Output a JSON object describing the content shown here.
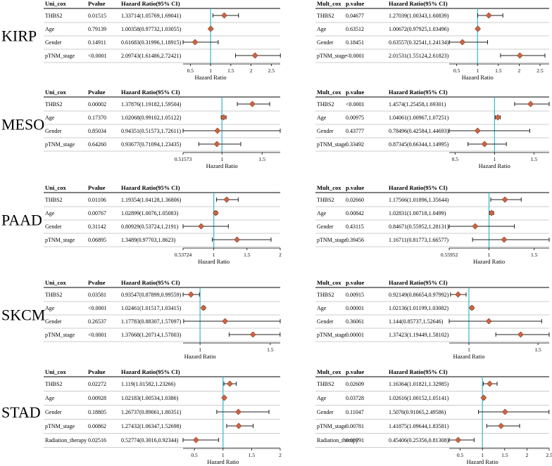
{
  "figure": {
    "panels": [
      {
        "cancer": "KIRP",
        "uni": {
          "headers": [
            "Uni_cox",
            "Pvalue",
            "Hazard Ratio(95% CI)"
          ],
          "xlabel": "Hazard Ratio",
          "rows": [
            {
              "var": "THBS2",
              "p": "0.01515",
              "hr_text": "1.33714(1.05769,1.69041)"
            },
            {
              "var": "Age",
              "p": "0.79139",
              "hr_text": "1.00358(0.97732,1.03055)"
            },
            {
              "var": "Gender",
              "p": "0.14911",
              "hr_text": "0.61683(0.31996,1.18915)"
            },
            {
              "var": "pTNM_stage",
              "p": "<0.0001",
              "hr_text": "2.09743(1.61486,2.72421)"
            }
          ]
        },
        "mult": {
          "headers": [
            "Mult_cox",
            "p.value",
            "Hazard Ratio(95% CI)"
          ],
          "xlabel": "Hazard Ratio",
          "rows": [
            {
              "var": "THBS2",
              "p": "0.04677",
              "hr_text": "1.27039(1.00343,1.60839)"
            },
            {
              "var": "Age",
              "p": "0.63512",
              "hr_text": "1.00672(0.97925,1.03496)"
            },
            {
              "var": "Gender",
              "p": "0.18451",
              "hr_text": "0.63557(0.32541,1.24134)"
            },
            {
              "var": "pTNM_stage",
              "p": "<0.0001",
              "hr_text": "2.01531(1.55124,2.61823)"
            }
          ]
        }
      },
      {
        "cancer": "MESO",
        "uni": {
          "headers": [
            "Uni_cox",
            "Pvalue",
            "Hazard Ratio(95% CI)"
          ],
          "xlabel": "Hazard Ratio",
          "rows": [
            {
              "var": "THBS2",
              "p": "0.00002",
              "hr_text": "1.37876(1.19182,1.59504)"
            },
            {
              "var": "Age",
              "p": "0.17370",
              "hr_text": "1.02068(0.99102,1.05122)"
            },
            {
              "var": "Gender",
              "p": "0.85034",
              "hr_text": "0.94351(0.51573,1.72611)"
            },
            {
              "var": "pTNM_stage",
              "p": "0.64260",
              "hr_text": "0.93677(0.71094,1.23435)"
            }
          ]
        },
        "mult": {
          "headers": [
            "Mult_cox",
            "p.value",
            "Hazard Ratio(95% CI)"
          ],
          "xlabel": "Hazard Ratio",
          "rows": [
            {
              "var": "THBS2",
              "p": "<0.0001",
              "hr_text": "1.4574(1.25458,1.69301)"
            },
            {
              "var": "Age",
              "p": "0.00975",
              "hr_text": "1.04061(1.00967,1.07251)"
            },
            {
              "var": "Gender",
              "p": "0.43777",
              "hr_text": "0.78496(0.42584,1.44693)"
            },
            {
              "var": "pTNM_stage",
              "p": "0.33492",
              "hr_text": "0.87345(0.66344,1.14995)"
            }
          ]
        }
      },
      {
        "cancer": "PAAD",
        "uni": {
          "headers": [
            "Uni_cox",
            "Pvalue",
            "Hazard Ratio(95% CI)"
          ],
          "xlabel": "Hazard Ratio",
          "rows": [
            {
              "var": "THBS2",
              "p": "0.01106",
              "hr_text": "1.19354(1.04128,1.36806)"
            },
            {
              "var": "Age",
              "p": "0.00767",
              "hr_text": "1.02899(1.0076,1.05083)"
            },
            {
              "var": "Gender",
              "p": "0.31142",
              "hr_text": "0.80929(0.53724,1.2191)"
            },
            {
              "var": "pTNM_stage",
              "p": "0.06895",
              "hr_text": "1.3489(0.97703,1.8623)"
            }
          ]
        },
        "mult": {
          "headers": [
            "Mult_cox",
            "p.value",
            "Hazard Ratio(95% CI)"
          ],
          "xlabel": "Hazard Ratio",
          "rows": [
            {
              "var": "THBS2",
              "p": "0.02660",
              "hr_text": "1.17566(1.01896,1.35644)"
            },
            {
              "var": "Age",
              "p": "0.00842",
              "hr_text": "1.02831(1.00718,1.0499)"
            },
            {
              "var": "Gender",
              "p": "0.43115",
              "hr_text": "0.84671(0.55952,1.28131)"
            },
            {
              "var": "pTNM_stage",
              "p": "0.39456",
              "hr_text": "1.16711(0.81773,1.66577)"
            }
          ]
        }
      },
      {
        "cancer": "SKCM",
        "uni": {
          "headers": [
            "Uni_cox",
            "Pvalue",
            "Hazard Ratio(95% CI)"
          ],
          "xlabel": "Hazard Ratio",
          "rows": [
            {
              "var": "THBS2",
              "p": "0.03581",
              "hr_text": "0.93547(0.87899,0.99559)"
            },
            {
              "var": "Age",
              "p": "<0.0001",
              "hr_text": "1.02461(1.01517,1.03415)"
            },
            {
              "var": "Gender",
              "p": "0.26537",
              "hr_text": "1.17783(0.88307,1.57097)"
            },
            {
              "var": "pTNM_stage",
              "p": "<0.0001",
              "hr_text": "1.37668(1.20714,1.57003)"
            }
          ]
        },
        "mult": {
          "headers": [
            "Mult_cox",
            "p.value",
            "Hazard Ratio(95% CI)"
          ],
          "xlabel": "Hazard Ratio",
          "rows": [
            {
              "var": "THBS2",
              "p": "0.00915",
              "hr_text": "0.92149(0.86654,0.97992)"
            },
            {
              "var": "Age",
              "p": "0.00001",
              "hr_text": "1.02136(1.01199,1.03082)"
            },
            {
              "var": "Gender",
              "p": "0.36061",
              "hr_text": "1.144(0.85737,1.52646)"
            },
            {
              "var": "pTNM_stage",
              "p": "0.00001",
              "hr_text": "1.37423(1.19449,1.58102)"
            }
          ]
        }
      },
      {
        "cancer": "STAD",
        "uni": {
          "headers": [
            "Uni_cox",
            "Pvalue",
            "Hazard Ratio(95% CI)"
          ],
          "xlabel": "Hazard Ratio",
          "rows": [
            {
              "var": "THBS2",
              "p": "0.02272",
              "hr_text": "1.119(1.01582,1.23266)"
            },
            {
              "var": "Age",
              "p": "0.00928",
              "hr_text": "1.02183(1.00534,1.0386)"
            },
            {
              "var": "Gender",
              "p": "0.18805",
              "hr_text": "1.26737(0.89061,1.80351)"
            },
            {
              "var": "pTNM_stage",
              "p": "0.00862",
              "hr_text": "1.27432(1.06347,1.52698)"
            },
            {
              "var": "Radiation_therapy",
              "p": "0.02516",
              "hr_text": "0.52774(0.3016,0.92344)"
            }
          ]
        },
        "mult": {
          "headers": [
            "Mult_cox",
            "p.value",
            "Hazard Ratio(95% CI)"
          ],
          "xlabel": "Hazard Ratio",
          "rows": [
            {
              "var": "THBS2",
              "p": "0.02609",
              "hr_text": "1.16364(1.01821,1.32985)"
            },
            {
              "var": "Age",
              "p": "0.03728",
              "hr_text": "1.02616(1.00152,1.05141)"
            },
            {
              "var": "Gender",
              "p": "0.11047",
              "hr_text": "1.5076(0.91065,2.49586)"
            },
            {
              "var": "pTNM_stage",
              "p": "0.00781",
              "hr_text": "1.41875(1.09644,1.83581)"
            },
            {
              "var": "Radiation_therapy",
              "p": "0.00791",
              "hr_text": "0.45406(0.25356,0.81308)"
            }
          ]
        }
      }
    ]
  },
  "chart_data": [
    {
      "type": "scatter",
      "panel": "KIRP Uni_cox",
      "xlabel": "Hazard Ratio",
      "xlim": [
        0.32,
        2.72
      ],
      "ticks": [
        0.5,
        1,
        1.5,
        2,
        2.5
      ],
      "tick_labels": [
        "0.5",
        "1",
        "1.5",
        "2",
        "2.5"
      ],
      "ref": 1,
      "hr": [
        1.33714,
        1.00358,
        0.61683,
        2.09743
      ],
      "lower": [
        1.05769,
        0.97732,
        0.31996,
        1.61486
      ],
      "upper": [
        1.69041,
        1.03055,
        1.18915,
        2.72421
      ]
    },
    {
      "type": "scatter",
      "panel": "KIRP Mult_cox",
      "xlabel": "Hazard Ratio",
      "xlim": [
        0.32,
        2.72
      ],
      "ticks": [
        0.5,
        1,
        1.5,
        2,
        2.5
      ],
      "tick_labels": [
        "0.5",
        "1",
        "1.5",
        "2",
        "2.5"
      ],
      "ref": 1,
      "hr": [
        1.27039,
        1.00672,
        0.63557,
        2.01531
      ],
      "lower": [
        1.00343,
        0.97925,
        0.32541,
        1.55124
      ],
      "upper": [
        1.60839,
        1.03496,
        1.24134,
        2.61823
      ]
    },
    {
      "type": "scatter",
      "panel": "MESO Uni_cox",
      "xlabel": "Hazard Ratio",
      "xlim": [
        0.51573,
        1.72611
      ],
      "ticks": [
        0.51573,
        1,
        1.5
      ],
      "tick_labels": [
        "0.51573",
        "1",
        "1.5"
      ],
      "ref": 1,
      "hr": [
        1.37876,
        1.02068,
        0.94351,
        0.93677
      ],
      "lower": [
        1.19182,
        0.99102,
        0.51573,
        0.71094
      ],
      "upper": [
        1.59504,
        1.05122,
        1.72611,
        1.23435
      ]
    },
    {
      "type": "scatter",
      "panel": "MESO Mult_cox",
      "xlabel": "Hazard Ratio",
      "xlim": [
        0.42584,
        1.69301
      ],
      "ticks": [
        0.5,
        1,
        1.5
      ],
      "tick_labels": [
        "0.5",
        "1",
        "1.5"
      ],
      "ref": 1,
      "hr": [
        1.4574,
        1.04061,
        0.78496,
        0.87345
      ],
      "lower": [
        1.25458,
        1.00967,
        0.42584,
        0.66344
      ],
      "upper": [
        1.69301,
        1.07251,
        1.44693,
        1.14995
      ]
    },
    {
      "type": "scatter",
      "panel": "PAAD Uni_cox",
      "xlabel": "Hazard Ratio",
      "xlim": [
        0.53724,
        2
      ],
      "ticks": [
        0.53724,
        1,
        1.5,
        2
      ],
      "tick_labels": [
        "0.53724",
        "1",
        "1.5",
        "2"
      ],
      "ref": 1,
      "hr": [
        1.19354,
        1.02899,
        0.80929,
        1.3489
      ],
      "lower": [
        1.04128,
        1.0076,
        0.53724,
        0.97703
      ],
      "upper": [
        1.36806,
        1.05083,
        1.2191,
        1.8623
      ]
    },
    {
      "type": "scatter",
      "panel": "PAAD Mult_cox",
      "xlabel": "Hazard Ratio",
      "xlim": [
        0.55952,
        1.66577
      ],
      "ticks": [
        0.55952,
        1,
        1.5
      ],
      "tick_labels": [
        "0.55952",
        "1",
        "1.5"
      ],
      "ref": 1,
      "hr": [
        1.17566,
        1.02831,
        0.84671,
        1.16711
      ],
      "lower": [
        1.01896,
        1.00718,
        0.55952,
        0.81773
      ],
      "upper": [
        1.35644,
        1.0499,
        1.28131,
        1.66577
      ]
    },
    {
      "type": "scatter",
      "panel": "SKCM Uni_cox",
      "xlabel": "Hazard Ratio",
      "xlim": [
        0.87899,
        1.57097
      ],
      "ticks": [
        1,
        1.5
      ],
      "tick_labels": [
        "1",
        "1.5"
      ],
      "ref": 1,
      "hr": [
        0.93547,
        1.02461,
        1.17783,
        1.37668
      ],
      "lower": [
        0.87899,
        1.01517,
        0.88307,
        1.20714
      ],
      "upper": [
        0.99559,
        1.03415,
        1.57097,
        1.57003
      ]
    },
    {
      "type": "scatter",
      "panel": "SKCM Mult_cox",
      "xlabel": "Hazard Ratio",
      "xlim": [
        0.85737,
        1.58102
      ],
      "ticks": [
        1,
        1.5
      ],
      "tick_labels": [
        "1",
        "1.5"
      ],
      "ref": 1,
      "hr": [
        0.92149,
        1.02136,
        1.144,
        1.37423
      ],
      "lower": [
        0.86654,
        1.01199,
        0.85737,
        1.19449
      ],
      "upper": [
        0.97992,
        1.03082,
        1.52646,
        1.58102
      ]
    },
    {
      "type": "scatter",
      "panel": "STAD Uni_cox",
      "xlabel": "Hazard Ratio",
      "xlim": [
        0.3016,
        2
      ],
      "ticks": [
        0.5,
        1,
        1.5,
        2
      ],
      "tick_labels": [
        "0.5",
        "1",
        "1.5",
        "2"
      ],
      "ref": 1,
      "hr": [
        1.119,
        1.02183,
        1.26737,
        1.27432,
        0.52774
      ],
      "lower": [
        1.01582,
        1.00534,
        0.89061,
        1.06347,
        0.3016
      ],
      "upper": [
        1.23266,
        1.0386,
        1.80351,
        1.52698,
        0.92344
      ]
    },
    {
      "type": "scatter",
      "panel": "STAD Mult_cox",
      "xlabel": "Hazard Ratio",
      "xlim": [
        0.25356,
        2.5
      ],
      "ticks": [
        0.5,
        1,
        1.5,
        2,
        2.5
      ],
      "tick_labels": [
        "0.5",
        "1",
        "1.5",
        "2",
        "2.5"
      ],
      "ref": 1,
      "hr": [
        1.16364,
        1.02616,
        1.5076,
        1.41875,
        0.45406
      ],
      "lower": [
        1.01821,
        1.00152,
        0.91065,
        1.09644,
        0.25356
      ],
      "upper": [
        1.32985,
        1.05141,
        2.49586,
        1.83581,
        0.81308
      ]
    }
  ],
  "colors": {
    "marker": "#cc6644",
    "marker_edge": "#8a3a22",
    "ref_line": "#33b5c8",
    "ink": "#000000"
  }
}
